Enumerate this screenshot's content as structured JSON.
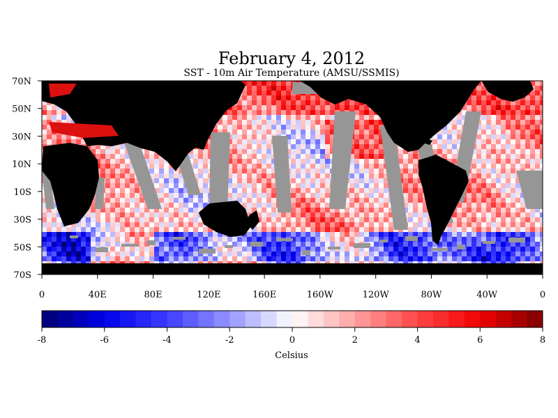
{
  "chart_data": {
    "type": "heatmap",
    "title": "February 4, 2012",
    "subtitle": "SST - 10m Air Temperature (AMSU/SSMIS)",
    "x_ticks": [
      "0",
      "40E",
      "80E",
      "120E",
      "160E",
      "160W",
      "120W",
      "80W",
      "40W",
      "0"
    ],
    "y_ticks": [
      "70N",
      "50N",
      "30N",
      "10N",
      "10S",
      "30S",
      "50S",
      "70S"
    ],
    "xlim_deg_east": [
      0,
      360
    ],
    "ylim_deg": [
      -70,
      70
    ],
    "colorbar": {
      "label": "Celsius",
      "ticks": [
        "-8",
        "-6",
        "-4",
        "-2",
        "0",
        "2",
        "4",
        "6",
        "8"
      ],
      "range": [
        -8,
        8
      ],
      "step": 0.5
    },
    "colors": {
      "land": "#000000",
      "missing": "#969696"
    }
  }
}
